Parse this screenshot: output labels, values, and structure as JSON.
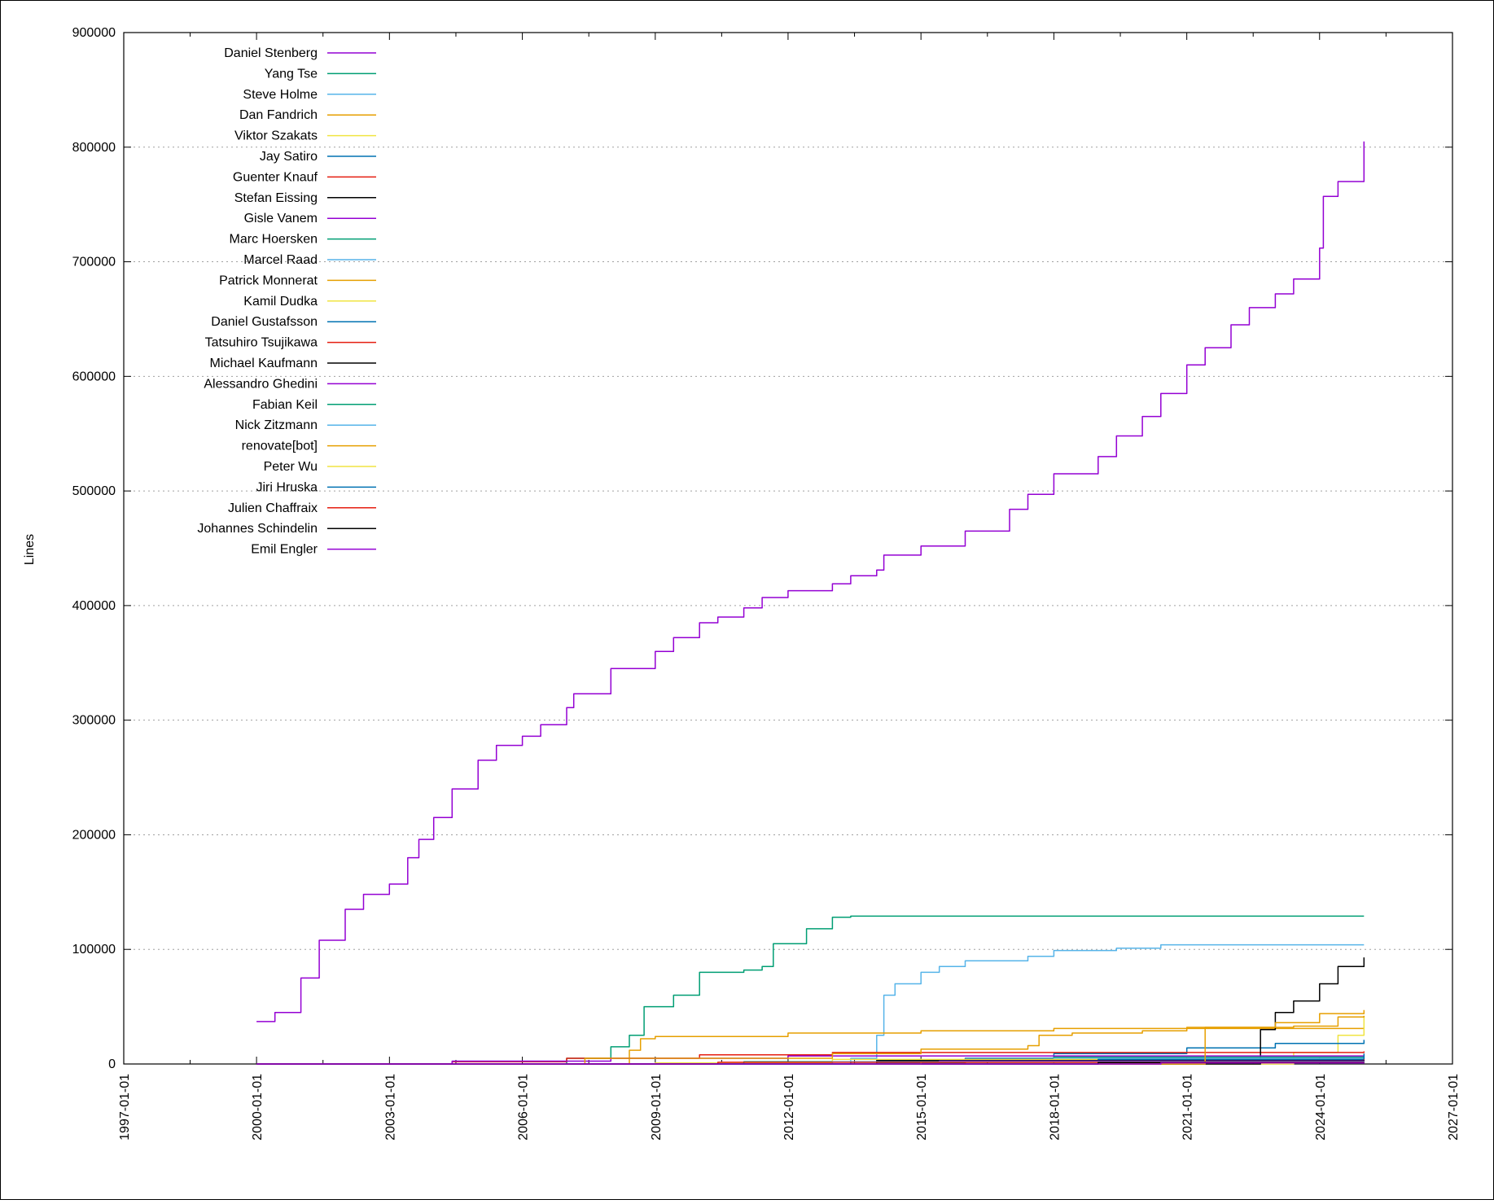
{
  "chart_data": {
    "type": "line",
    "title": "",
    "xlabel": "",
    "ylabel": "Lines",
    "xlim": [
      "1997-01-01",
      "2027-01-01"
    ],
    "ylim": [
      0,
      900000
    ],
    "x_ticks": [
      "1997-01-01",
      "2000-01-01",
      "2003-01-01",
      "2006-01-01",
      "2009-01-01",
      "2012-01-01",
      "2015-01-01",
      "2018-01-01",
      "2021-01-01",
      "2024-01-01",
      "2027-01-01"
    ],
    "y_ticks": [
      0,
      100000,
      200000,
      300000,
      400000,
      500000,
      600000,
      700000,
      800000,
      900000
    ],
    "grid": "horizontal dotted",
    "legend_position": "top-left",
    "series": [
      {
        "name": "Daniel Stenberg",
        "color": "#9400d3",
        "points": [
          [
            "2000-01-01",
            37000
          ],
          [
            "2000-06-01",
            45000
          ],
          [
            "2001-01-01",
            75000
          ],
          [
            "2001-06-01",
            108000
          ],
          [
            "2002-01-01",
            135000
          ],
          [
            "2002-06-01",
            148000
          ],
          [
            "2003-01-01",
            157000
          ],
          [
            "2003-06-01",
            180000
          ],
          [
            "2003-09-01",
            196000
          ],
          [
            "2004-01-01",
            215000
          ],
          [
            "2004-06-01",
            240000
          ],
          [
            "2005-01-01",
            265000
          ],
          [
            "2005-06-01",
            278000
          ],
          [
            "2006-01-01",
            286000
          ],
          [
            "2006-06-01",
            296000
          ],
          [
            "2007-01-01",
            311000
          ],
          [
            "2007-03-01",
            323000
          ],
          [
            "2008-01-01",
            345000
          ],
          [
            "2009-01-01",
            360000
          ],
          [
            "2009-06-01",
            372000
          ],
          [
            "2010-01-01",
            385000
          ],
          [
            "2010-06-01",
            390000
          ],
          [
            "2011-01-01",
            398000
          ],
          [
            "2011-06-01",
            407000
          ],
          [
            "2012-01-01",
            413000
          ],
          [
            "2013-01-01",
            419000
          ],
          [
            "2013-06-01",
            426000
          ],
          [
            "2014-01-01",
            431000
          ],
          [
            "2014-03-01",
            444000
          ],
          [
            "2015-01-01",
            452000
          ],
          [
            "2016-01-01",
            465000
          ],
          [
            "2017-01-01",
            484000
          ],
          [
            "2017-06-01",
            497000
          ],
          [
            "2018-01-01",
            515000
          ],
          [
            "2019-01-01",
            530000
          ],
          [
            "2019-06-01",
            548000
          ],
          [
            "2020-01-01",
            565000
          ],
          [
            "2020-06-01",
            585000
          ],
          [
            "2021-01-01",
            610000
          ],
          [
            "2021-06-01",
            625000
          ],
          [
            "2022-01-01",
            645000
          ],
          [
            "2022-06-01",
            660000
          ],
          [
            "2023-01-01",
            672000
          ],
          [
            "2023-06-01",
            685000
          ],
          [
            "2024-01-01",
            712000
          ],
          [
            "2024-02-01",
            757000
          ],
          [
            "2024-06-01",
            770000
          ],
          [
            "2025-01-01",
            805000
          ]
        ]
      },
      {
        "name": "Yang Tse",
        "color": "#009e73",
        "points": [
          [
            "2000-01-01",
            0
          ],
          [
            "2006-06-01",
            0
          ],
          [
            "2007-01-01",
            5000
          ],
          [
            "2008-01-01",
            15000
          ],
          [
            "2008-06-01",
            25000
          ],
          [
            "2008-10-01",
            50000
          ],
          [
            "2009-06-01",
            60000
          ],
          [
            "2010-01-01",
            80000
          ],
          [
            "2011-01-01",
            82000
          ],
          [
            "2011-06-01",
            85000
          ],
          [
            "2011-09-01",
            105000
          ],
          [
            "2012-06-01",
            118000
          ],
          [
            "2013-01-01",
            128000
          ],
          [
            "2013-06-01",
            129000
          ],
          [
            "2025-01-01",
            129000
          ]
        ]
      },
      {
        "name": "Steve Holme",
        "color": "#56b4e9",
        "points": [
          [
            "2000-01-01",
            0
          ],
          [
            "2012-06-01",
            0
          ],
          [
            "2013-06-01",
            5000
          ],
          [
            "2014-01-01",
            25000
          ],
          [
            "2014-03-01",
            60000
          ],
          [
            "2014-06-01",
            70000
          ],
          [
            "2015-01-01",
            80000
          ],
          [
            "2015-06-01",
            85000
          ],
          [
            "2016-01-01",
            90000
          ],
          [
            "2017-06-01",
            94000
          ],
          [
            "2018-01-01",
            99000
          ],
          [
            "2019-06-01",
            101000
          ],
          [
            "2020-06-01",
            104000
          ],
          [
            "2025-01-01",
            104000
          ]
        ]
      },
      {
        "name": "Dan Fandrich",
        "color": "#e69f00",
        "points": [
          [
            "2000-01-01",
            0
          ],
          [
            "2007-06-01",
            0
          ],
          [
            "2008-06-01",
            12000
          ],
          [
            "2008-09-01",
            22000
          ],
          [
            "2009-01-01",
            24000
          ],
          [
            "2012-01-01",
            27000
          ],
          [
            "2015-01-01",
            29000
          ],
          [
            "2018-01-01",
            31000
          ],
          [
            "2025-01-01",
            32000
          ]
        ]
      },
      {
        "name": "Viktor Szakats",
        "color": "#f0e442",
        "points": [
          [
            "2000-01-01",
            0
          ],
          [
            "2022-06-01",
            0
          ],
          [
            "2023-06-01",
            10000
          ],
          [
            "2024-06-01",
            25000
          ],
          [
            "2025-01-01",
            42000
          ]
        ]
      },
      {
        "name": "Jay Satiro",
        "color": "#0072b2",
        "points": [
          [
            "2000-01-01",
            0
          ],
          [
            "2014-01-01",
            1000
          ],
          [
            "2016-01-01",
            5000
          ],
          [
            "2018-01-01",
            9000
          ],
          [
            "2021-01-01",
            14000
          ],
          [
            "2023-01-01",
            18000
          ],
          [
            "2025-01-01",
            21000
          ]
        ]
      },
      {
        "name": "Guenter Knauf",
        "color": "#e51e10",
        "points": [
          [
            "2000-01-01",
            0
          ],
          [
            "2004-06-01",
            2000
          ],
          [
            "2007-01-01",
            5000
          ],
          [
            "2010-01-01",
            8000
          ],
          [
            "2013-01-01",
            10000
          ],
          [
            "2025-01-01",
            11000
          ]
        ]
      },
      {
        "name": "Stefan Eissing",
        "color": "#000000",
        "points": [
          [
            "2000-01-01",
            0
          ],
          [
            "2022-06-01",
            0
          ],
          [
            "2022-09-01",
            30000
          ],
          [
            "2023-01-01",
            45000
          ],
          [
            "2023-06-01",
            55000
          ],
          [
            "2024-01-01",
            70000
          ],
          [
            "2024-06-01",
            85000
          ],
          [
            "2025-01-01",
            93000
          ]
        ]
      },
      {
        "name": "Gisle Vanem",
        "color": "#9400d3",
        "points": [
          [
            "2000-01-01",
            0
          ],
          [
            "2004-06-01",
            2500
          ],
          [
            "2008-01-01",
            5000
          ],
          [
            "2012-01-01",
            7000
          ],
          [
            "2025-01-01",
            8000
          ]
        ]
      },
      {
        "name": "Marc Hoersken",
        "color": "#009e73",
        "points": [
          [
            "2000-01-01",
            0
          ],
          [
            "2012-01-01",
            0
          ],
          [
            "2014-01-01",
            3000
          ],
          [
            "2018-01-01",
            6000
          ],
          [
            "2025-01-01",
            7500
          ]
        ]
      },
      {
        "name": "Marcel Raad",
        "color": "#56b4e9",
        "points": [
          [
            "2000-01-01",
            0
          ],
          [
            "2016-01-01",
            0
          ],
          [
            "2018-01-01",
            5000
          ],
          [
            "2025-01-01",
            6000
          ]
        ]
      },
      {
        "name": "Patrick Monnerat",
        "color": "#e69f00",
        "points": [
          [
            "2000-01-01",
            0
          ],
          [
            "2006-06-01",
            0
          ],
          [
            "2007-06-01",
            5000
          ],
          [
            "2013-01-01",
            9000
          ],
          [
            "2015-01-01",
            13000
          ],
          [
            "2017-06-01",
            16000
          ],
          [
            "2017-09-01",
            25000
          ],
          [
            "2018-06-01",
            27000
          ],
          [
            "2020-01-01",
            29000
          ],
          [
            "2021-01-01",
            32000
          ],
          [
            "2023-01-01",
            36000
          ],
          [
            "2024-01-01",
            44000
          ],
          [
            "2025-01-01",
            47000
          ]
        ]
      },
      {
        "name": "Kamil Dudka",
        "color": "#f0e442",
        "points": [
          [
            "2000-01-01",
            0
          ],
          [
            "2009-01-01",
            1000
          ],
          [
            "2013-01-01",
            4000
          ],
          [
            "2025-01-01",
            5000
          ]
        ]
      },
      {
        "name": "Daniel Gustafsson",
        "color": "#0072b2",
        "points": [
          [
            "2000-01-01",
            0
          ],
          [
            "2017-01-01",
            0
          ],
          [
            "2019-01-01",
            4000
          ],
          [
            "2025-01-01",
            9000
          ]
        ]
      },
      {
        "name": "Tatsuhiro Tsujikawa",
        "color": "#e51e10",
        "points": [
          [
            "2000-01-01",
            0
          ],
          [
            "2014-01-01",
            0
          ],
          [
            "2016-01-01",
            2000
          ],
          [
            "2025-01-01",
            4000
          ]
        ]
      },
      {
        "name": "Michael Kaufmann",
        "color": "#000000",
        "points": [
          [
            "2000-01-01",
            0
          ],
          [
            "2012-01-01",
            0
          ],
          [
            "2014-01-01",
            3000
          ],
          [
            "2025-01-01",
            3500
          ]
        ]
      },
      {
        "name": "Alessandro Ghedini",
        "color": "#9400d3",
        "points": [
          [
            "2000-01-01",
            0
          ],
          [
            "2013-01-01",
            0
          ],
          [
            "2015-06-01",
            2500
          ],
          [
            "2025-01-01",
            3000
          ]
        ]
      },
      {
        "name": "Fabian Keil",
        "color": "#009e73",
        "points": [
          [
            "2000-01-01",
            0
          ],
          [
            "2010-01-01",
            0
          ],
          [
            "2011-01-01",
            2000
          ],
          [
            "2025-01-01",
            2500
          ]
        ]
      },
      {
        "name": "Nick Zitzmann",
        "color": "#56b4e9",
        "points": [
          [
            "2000-01-01",
            0
          ],
          [
            "2012-01-01",
            0
          ],
          [
            "2013-01-01",
            2000
          ],
          [
            "2025-01-01",
            2200
          ]
        ]
      },
      {
        "name": "renovate[bot]",
        "color": "#e69f00",
        "points": [
          [
            "2000-01-01",
            0
          ],
          [
            "2021-01-01",
            0
          ],
          [
            "2021-06-01",
            32000
          ],
          [
            "2023-06-01",
            33000
          ],
          [
            "2024-06-01",
            41000
          ],
          [
            "2025-01-01",
            42000
          ]
        ]
      },
      {
        "name": "Peter Wu",
        "color": "#f0e442",
        "points": [
          [
            "2000-01-01",
            0
          ],
          [
            "2014-01-01",
            0
          ],
          [
            "2015-01-01",
            1500
          ],
          [
            "2025-01-01",
            2000
          ]
        ]
      },
      {
        "name": "Jiri Hruska",
        "color": "#0072b2",
        "points": [
          [
            "2000-01-01",
            0
          ],
          [
            "2013-01-01",
            0
          ],
          [
            "2013-06-01",
            1500
          ],
          [
            "2025-01-01",
            1800
          ]
        ]
      },
      {
        "name": "Julien Chaffraix",
        "color": "#e51e10",
        "points": [
          [
            "2000-01-01",
            0
          ],
          [
            "2010-01-01",
            0
          ],
          [
            "2010-06-01",
            1500
          ],
          [
            "2025-01-01",
            1600
          ]
        ]
      },
      {
        "name": "Johannes Schindelin",
        "color": "#000000",
        "points": [
          [
            "2000-01-01",
            0
          ],
          [
            "2018-01-01",
            0
          ],
          [
            "2019-01-01",
            1200
          ],
          [
            "2025-01-01",
            1500
          ]
        ]
      },
      {
        "name": "Emil Engler",
        "color": "#9400d3",
        "points": [
          [
            "2000-01-01",
            0
          ],
          [
            "2019-06-01",
            0
          ],
          [
            "2020-06-01",
            1000
          ],
          [
            "2025-01-01",
            1200
          ]
        ]
      }
    ]
  }
}
